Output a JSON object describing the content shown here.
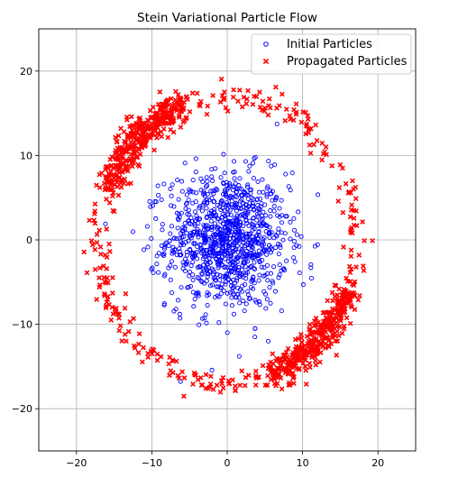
{
  "chart_data": {
    "type": "scatter",
    "title": "Stein Variational Particle Flow",
    "xlabel": "",
    "ylabel": "",
    "xlim": [
      -25,
      25
    ],
    "ylim": [
      -25,
      25
    ],
    "x_ticks": [
      -20,
      -10,
      0,
      10,
      20
    ],
    "y_ticks": [
      -20,
      -10,
      0,
      10,
      20
    ],
    "grid": true,
    "legend_position": "top-right",
    "series": [
      {
        "name": "Initial Particles",
        "marker": "hollow-circle",
        "color": "#0000ff",
        "distribution": {
          "shape": "gaussian-cluster",
          "center": [
            0,
            0
          ],
          "spread": 4,
          "count": 1000
        },
        "points": [
          [
            -0.8,
            1.2
          ],
          [
            1.5,
            -2.1
          ],
          [
            -3.2,
            0.5
          ],
          [
            2.7,
            3.1
          ],
          [
            0.3,
            -0.4
          ],
          [
            -1.9,
            -3.6
          ],
          [
            4.2,
            1.0
          ],
          [
            -5.1,
            2.3
          ],
          [
            3.4,
            -4.8
          ],
          [
            -2.6,
            5.4
          ],
          [
            5.8,
            -0.9
          ],
          [
            -6.3,
            -1.4
          ],
          [
            1.1,
            6.7
          ],
          [
            -0.2,
            -7.6
          ],
          [
            7.9,
            2.8
          ],
          [
            -4.5,
            -6.2
          ],
          [
            6.4,
            -6.1
          ],
          [
            -7.4,
            5.2
          ],
          [
            2.3,
            -8.4
          ],
          [
            -8.7,
            -0.7
          ],
          [
            8.4,
            5.9
          ],
          [
            9.6,
            -3.9
          ],
          [
            11.1,
            -3.3
          ],
          [
            -10.6,
            1.6
          ],
          [
            0.9,
            9.3
          ],
          [
            -5.6,
            9.1
          ],
          [
            6.3,
            8.9
          ],
          [
            -1.1,
            -9.8
          ],
          [
            3.7,
            -10.5
          ],
          [
            -6.8,
            -8.2
          ],
          [
            10.1,
            -5.3
          ],
          [
            -9.2,
            6.4
          ],
          [
            1.6,
            -13.8
          ],
          [
            -0.3,
            3.5
          ],
          [
            0.8,
            0.2
          ]
        ]
      },
      {
        "name": "Propagated Particles",
        "marker": "x",
        "color": "#ff0000",
        "distribution": {
          "shape": "ring",
          "center": [
            0,
            0
          ],
          "radius": 17,
          "width": 0.9,
          "count": 1000,
          "dense_arcs": [
            [
              110,
              160
            ],
            [
              290,
              340
            ]
          ]
        },
        "points": [
          [
            -11.5,
            13.5
          ],
          [
            -13.2,
            12.1
          ],
          [
            -14.6,
            10.3
          ],
          [
            -15.8,
            8.5
          ],
          [
            -12.7,
            14.6
          ],
          [
            -10.2,
            15.3
          ],
          [
            -8.7,
            16.1
          ],
          [
            -6.5,
            17.2
          ],
          [
            -16.9,
            6.2
          ],
          [
            -17.6,
            3.1
          ],
          [
            -18.0,
            -0.1
          ],
          [
            -17.5,
            -3.5
          ],
          [
            -16.3,
            -6.4
          ],
          [
            -15.4,
            -9.5
          ],
          [
            -13.4,
            -12.0
          ],
          [
            -10.5,
            -13.9
          ],
          [
            -7.5,
            -15.5
          ],
          [
            -3.4,
            -17.2
          ],
          [
            0.3,
            -17.0
          ],
          [
            3.8,
            -17.2
          ],
          [
            6.9,
            -15.9
          ],
          [
            9.1,
            -14.6
          ],
          [
            11.3,
            -13.0
          ],
          [
            12.8,
            -11.6
          ],
          [
            14.1,
            -10.2
          ],
          [
            15.3,
            -7.8
          ],
          [
            16.6,
            -5.2
          ],
          [
            17.5,
            -1.8
          ],
          [
            17.2,
            1.7
          ],
          [
            16.4,
            5.6
          ],
          [
            15.0,
            8.9
          ],
          [
            13.1,
            11.0
          ],
          [
            10.8,
            12.7
          ],
          [
            8.3,
            14.7
          ],
          [
            5.5,
            15.9
          ],
          [
            2.2,
            16.9
          ],
          [
            -1.9,
            17.1
          ],
          [
            -4.6,
            17.4
          ]
        ]
      }
    ]
  }
}
